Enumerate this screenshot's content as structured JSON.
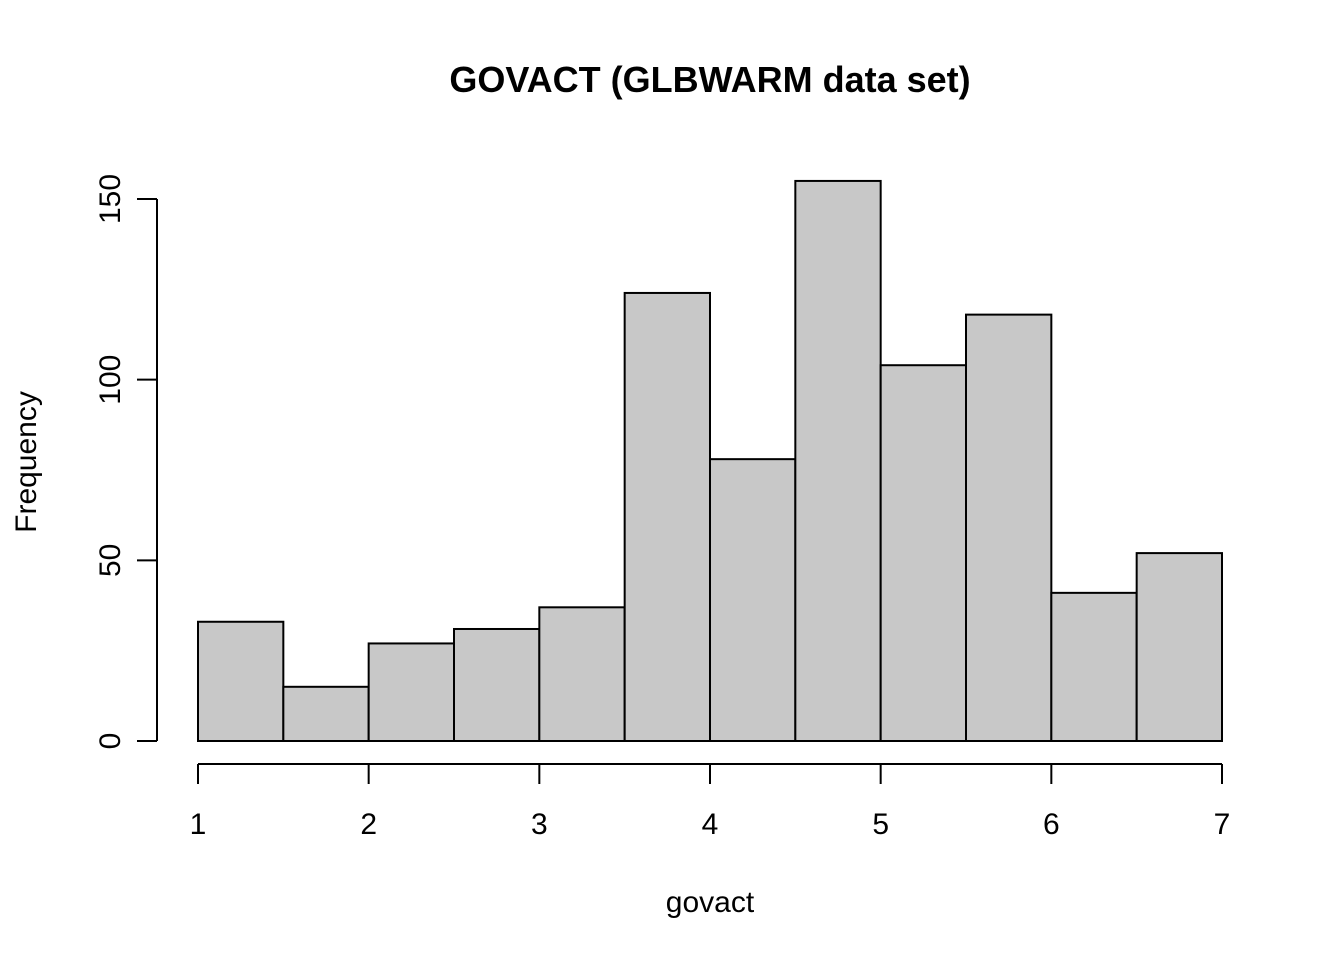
{
  "chart_data": {
    "type": "bar",
    "title": "GOVACT (GLBWARM data set)",
    "xlabel": "govact",
    "ylabel": "Frequency",
    "bin_edges": [
      1,
      1.5,
      2,
      2.5,
      3,
      3.5,
      4,
      4.5,
      5,
      5.5,
      6,
      6.5,
      7
    ],
    "values": [
      33,
      15,
      27,
      31,
      37,
      124,
      78,
      155,
      104,
      118,
      41,
      52
    ],
    "xlim": [
      1,
      7
    ],
    "ylim": [
      0,
      155
    ],
    "x_ticks": [
      1,
      2,
      3,
      4,
      5,
      6,
      7
    ],
    "y_ticks": [
      0,
      50,
      100,
      150
    ],
    "grid": false,
    "bar_color": "#c8c8c8",
    "edge_color": "#000000"
  }
}
